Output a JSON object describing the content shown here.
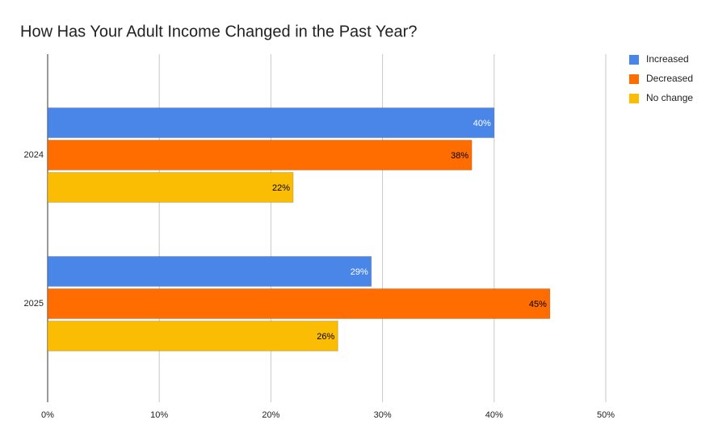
{
  "chart_data": {
    "type": "bar",
    "orientation": "horizontal",
    "title": "How Has Your Adult Income Changed in the Past Year?",
    "categories": [
      "2024",
      "2025"
    ],
    "series": [
      {
        "name": "Increased",
        "color": "#4a86e8",
        "label_color": "#ffffff",
        "values": [
          40,
          29
        ],
        "value_labels": [
          "40%",
          "29%"
        ]
      },
      {
        "name": "Decreased",
        "color": "#ff6d01",
        "label_color": "#000000",
        "values": [
          38,
          45
        ],
        "value_labels": [
          "38%",
          "45%"
        ]
      },
      {
        "name": "No change",
        "color": "#fbbc04",
        "label_color": "#000000",
        "values": [
          22,
          26
        ],
        "value_labels": [
          "22%",
          "26%"
        ]
      }
    ],
    "xlim": [
      0,
      50
    ],
    "xticks": [
      {
        "value": 0,
        "label": "0%"
      },
      {
        "value": 10,
        "label": "10%"
      },
      {
        "value": 20,
        "label": "20%"
      },
      {
        "value": 30,
        "label": "30%"
      },
      {
        "value": 40,
        "label": "40%"
      },
      {
        "value": 50,
        "label": "50%"
      }
    ],
    "grid": true,
    "legend": "right"
  }
}
